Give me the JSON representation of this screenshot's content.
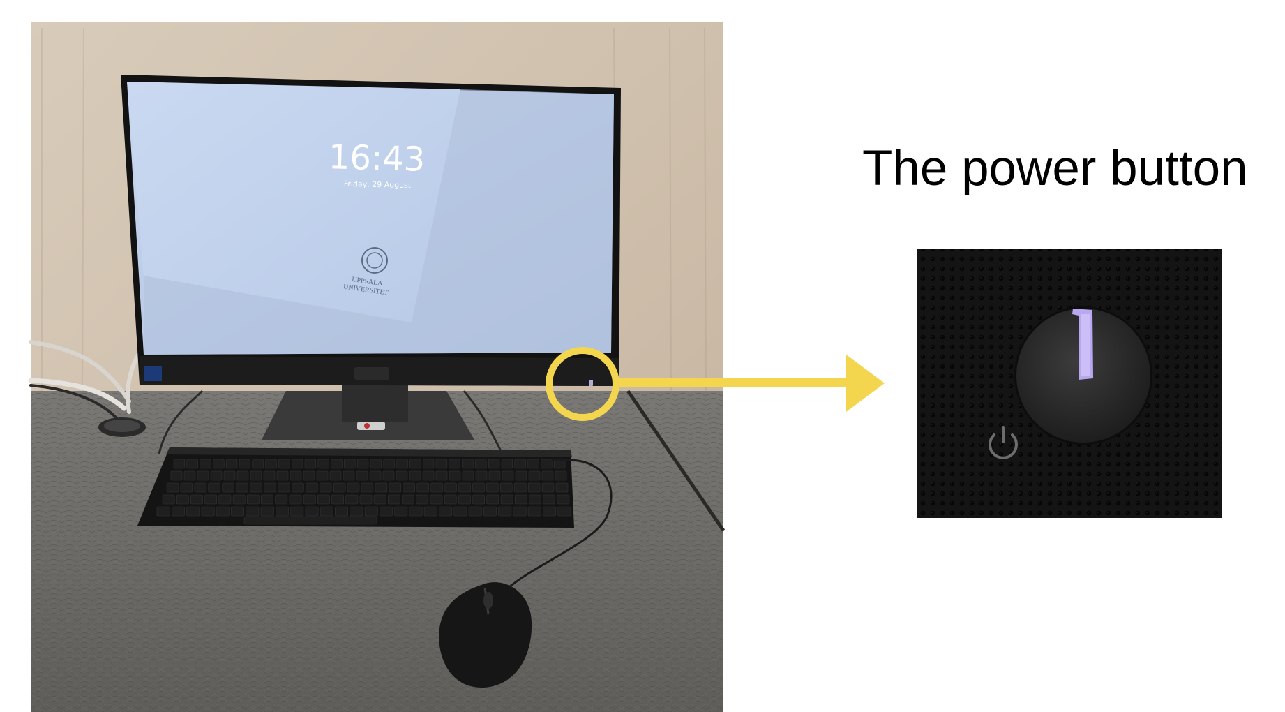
{
  "caption": "The power button",
  "screen": {
    "time": "16:43",
    "date": "Friday, 29 August",
    "university_line1": "UPPSALA",
    "university_line2": "UNIVERSITET"
  },
  "colors": {
    "highlight": "#f3d64e",
    "screen_bg": "#bccde6",
    "power_led": "#b9a8f0",
    "desk": "#6c6a66",
    "wall": "#cdbfae"
  }
}
